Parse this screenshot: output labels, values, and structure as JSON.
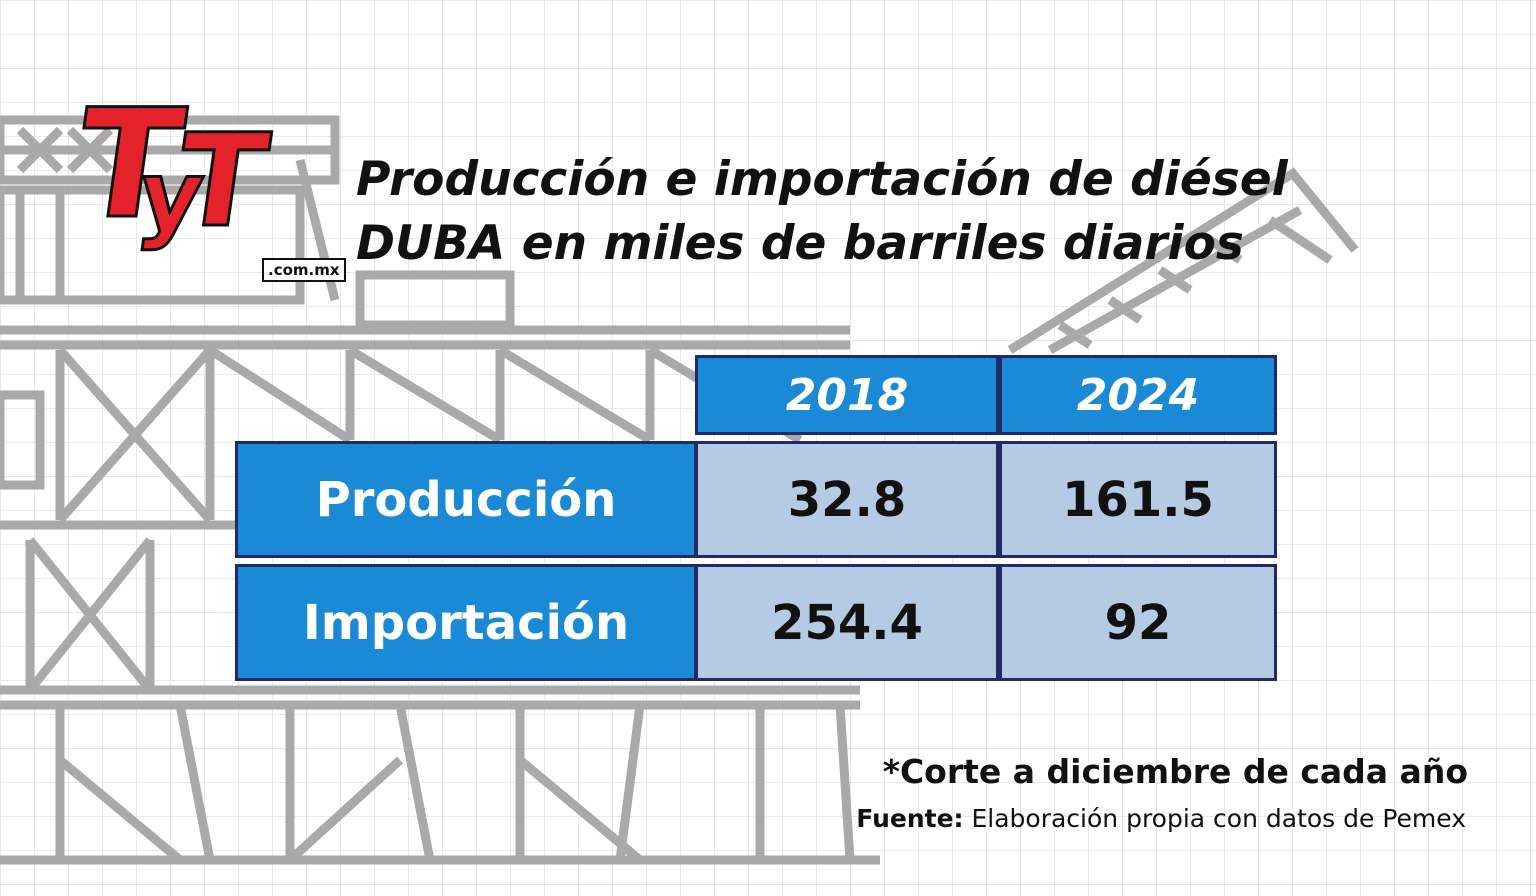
{
  "logo": {
    "letters_1": "T",
    "letters_2": "y",
    "letters_3": "T",
    "domain": ".com.mx"
  },
  "title": {
    "line1": "Producción e importación de diésel",
    "line2": "DUBA en miles de barriles diarios"
  },
  "chart_data": {
    "type": "table",
    "columns": [
      "2018",
      "2024"
    ],
    "rows": [
      {
        "label": "Producción",
        "values": [
          "32.8",
          "161.5"
        ]
      },
      {
        "label": "Importación",
        "values": [
          "254.4",
          "92"
        ]
      }
    ]
  },
  "footnote": "*Corte a diciembre de cada año",
  "source": {
    "label": "Fuente:",
    "text": " Elaboración propia con datos de Pemex"
  },
  "colors": {
    "header_blue": "#1a8ad6",
    "cell_light": "#b5cbe4",
    "border_navy": "#222a66",
    "logo_red": "#e3222b"
  },
  "background": {
    "illustration": "offshore-oil-platform-sketch-icon"
  }
}
